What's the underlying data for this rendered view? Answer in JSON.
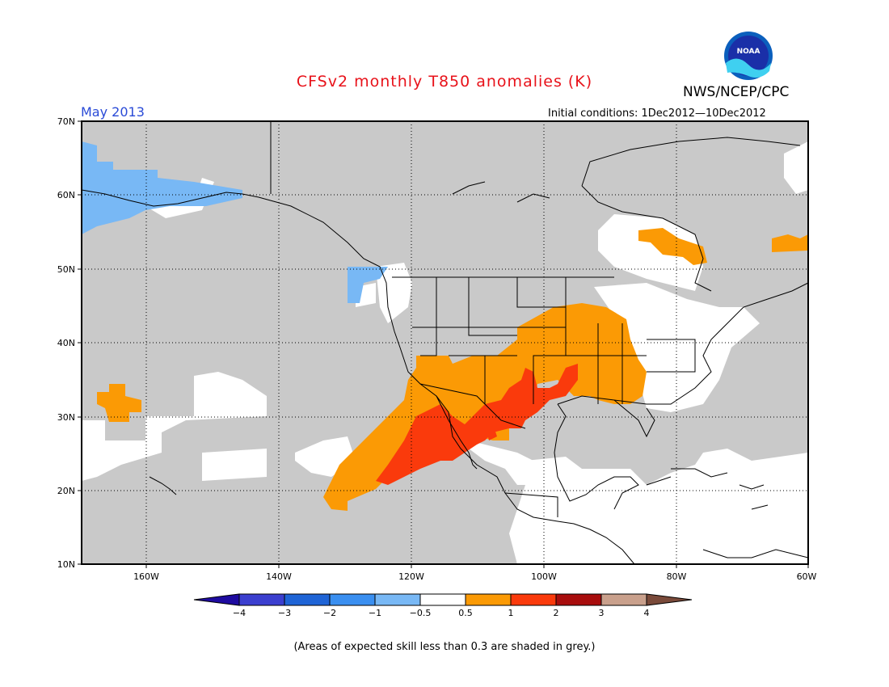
{
  "title": "CFSv2 monthly T850 anomalies (K)",
  "org": "NWS/NCEP/CPC",
  "logo_text": "NOAA",
  "month": "May 2013",
  "initial_conditions": "Initial conditions: 1Dec2012—10Dec2012",
  "note": "(Areas of expected skill less than 0.3 are shaded in grey.)",
  "lat_labels": [
    "70N",
    "60N",
    "50N",
    "40N",
    "30N",
    "20N",
    "10N"
  ],
  "lon_labels": [
    "160W",
    "140W",
    "120W",
    "100W",
    "80W",
    "60W"
  ],
  "colorbar": {
    "labels": [
      "−4",
      "−3",
      "−2",
      "−1",
      "−0.5",
      "0.5",
      "1",
      "2",
      "3",
      "4"
    ],
    "colors": [
      "#1e0ba0",
      "#3b3fcf",
      "#1f64d6",
      "#3a8ff0",
      "#78b8f5",
      "#ffffff",
      "#fb9a05",
      "#fa3a0c",
      "#a80d0d",
      "#c9a08c",
      "#7a4a3a"
    ]
  },
  "colors": {
    "grey_low_skill": "#c9c9c9",
    "title": "#e8121a",
    "month": "#2a4bd7"
  }
}
